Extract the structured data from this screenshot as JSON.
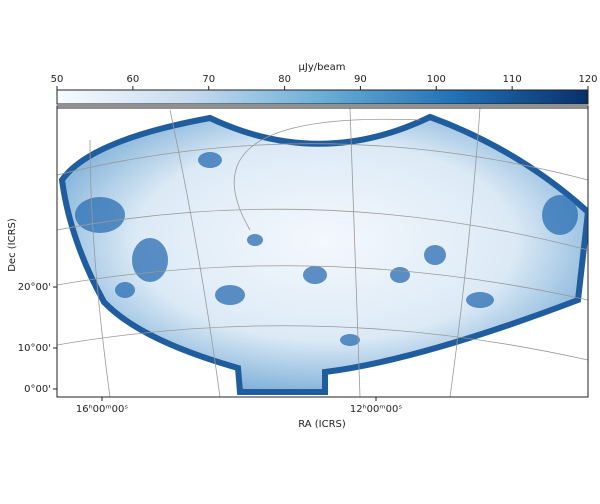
{
  "chart_data": {
    "type": "sky-map",
    "xlabel": "RA (ICRS)",
    "ylabel": "Dec (ICRS)",
    "xticks": [
      {
        "value": 16,
        "label": "16ʰ00ᵐ00ˢ"
      },
      {
        "value": 12,
        "label": "12ʰ00ᵐ00ˢ"
      }
    ],
    "yticks": [
      {
        "value": 20,
        "label": "20°00'"
      },
      {
        "value": 10,
        "label": "10°00'"
      },
      {
        "value": 0,
        "label": "0°00'"
      }
    ],
    "colorbar": {
      "label": "μJy/beam",
      "lim": [
        50,
        120
      ],
      "ticks": [
        50,
        60,
        70,
        80,
        90,
        100,
        110,
        120
      ],
      "colors": [
        "#f7fbff",
        "#c6dbef",
        "#6baed6",
        "#2171b5",
        "#08306b"
      ]
    },
    "grid": true
  }
}
